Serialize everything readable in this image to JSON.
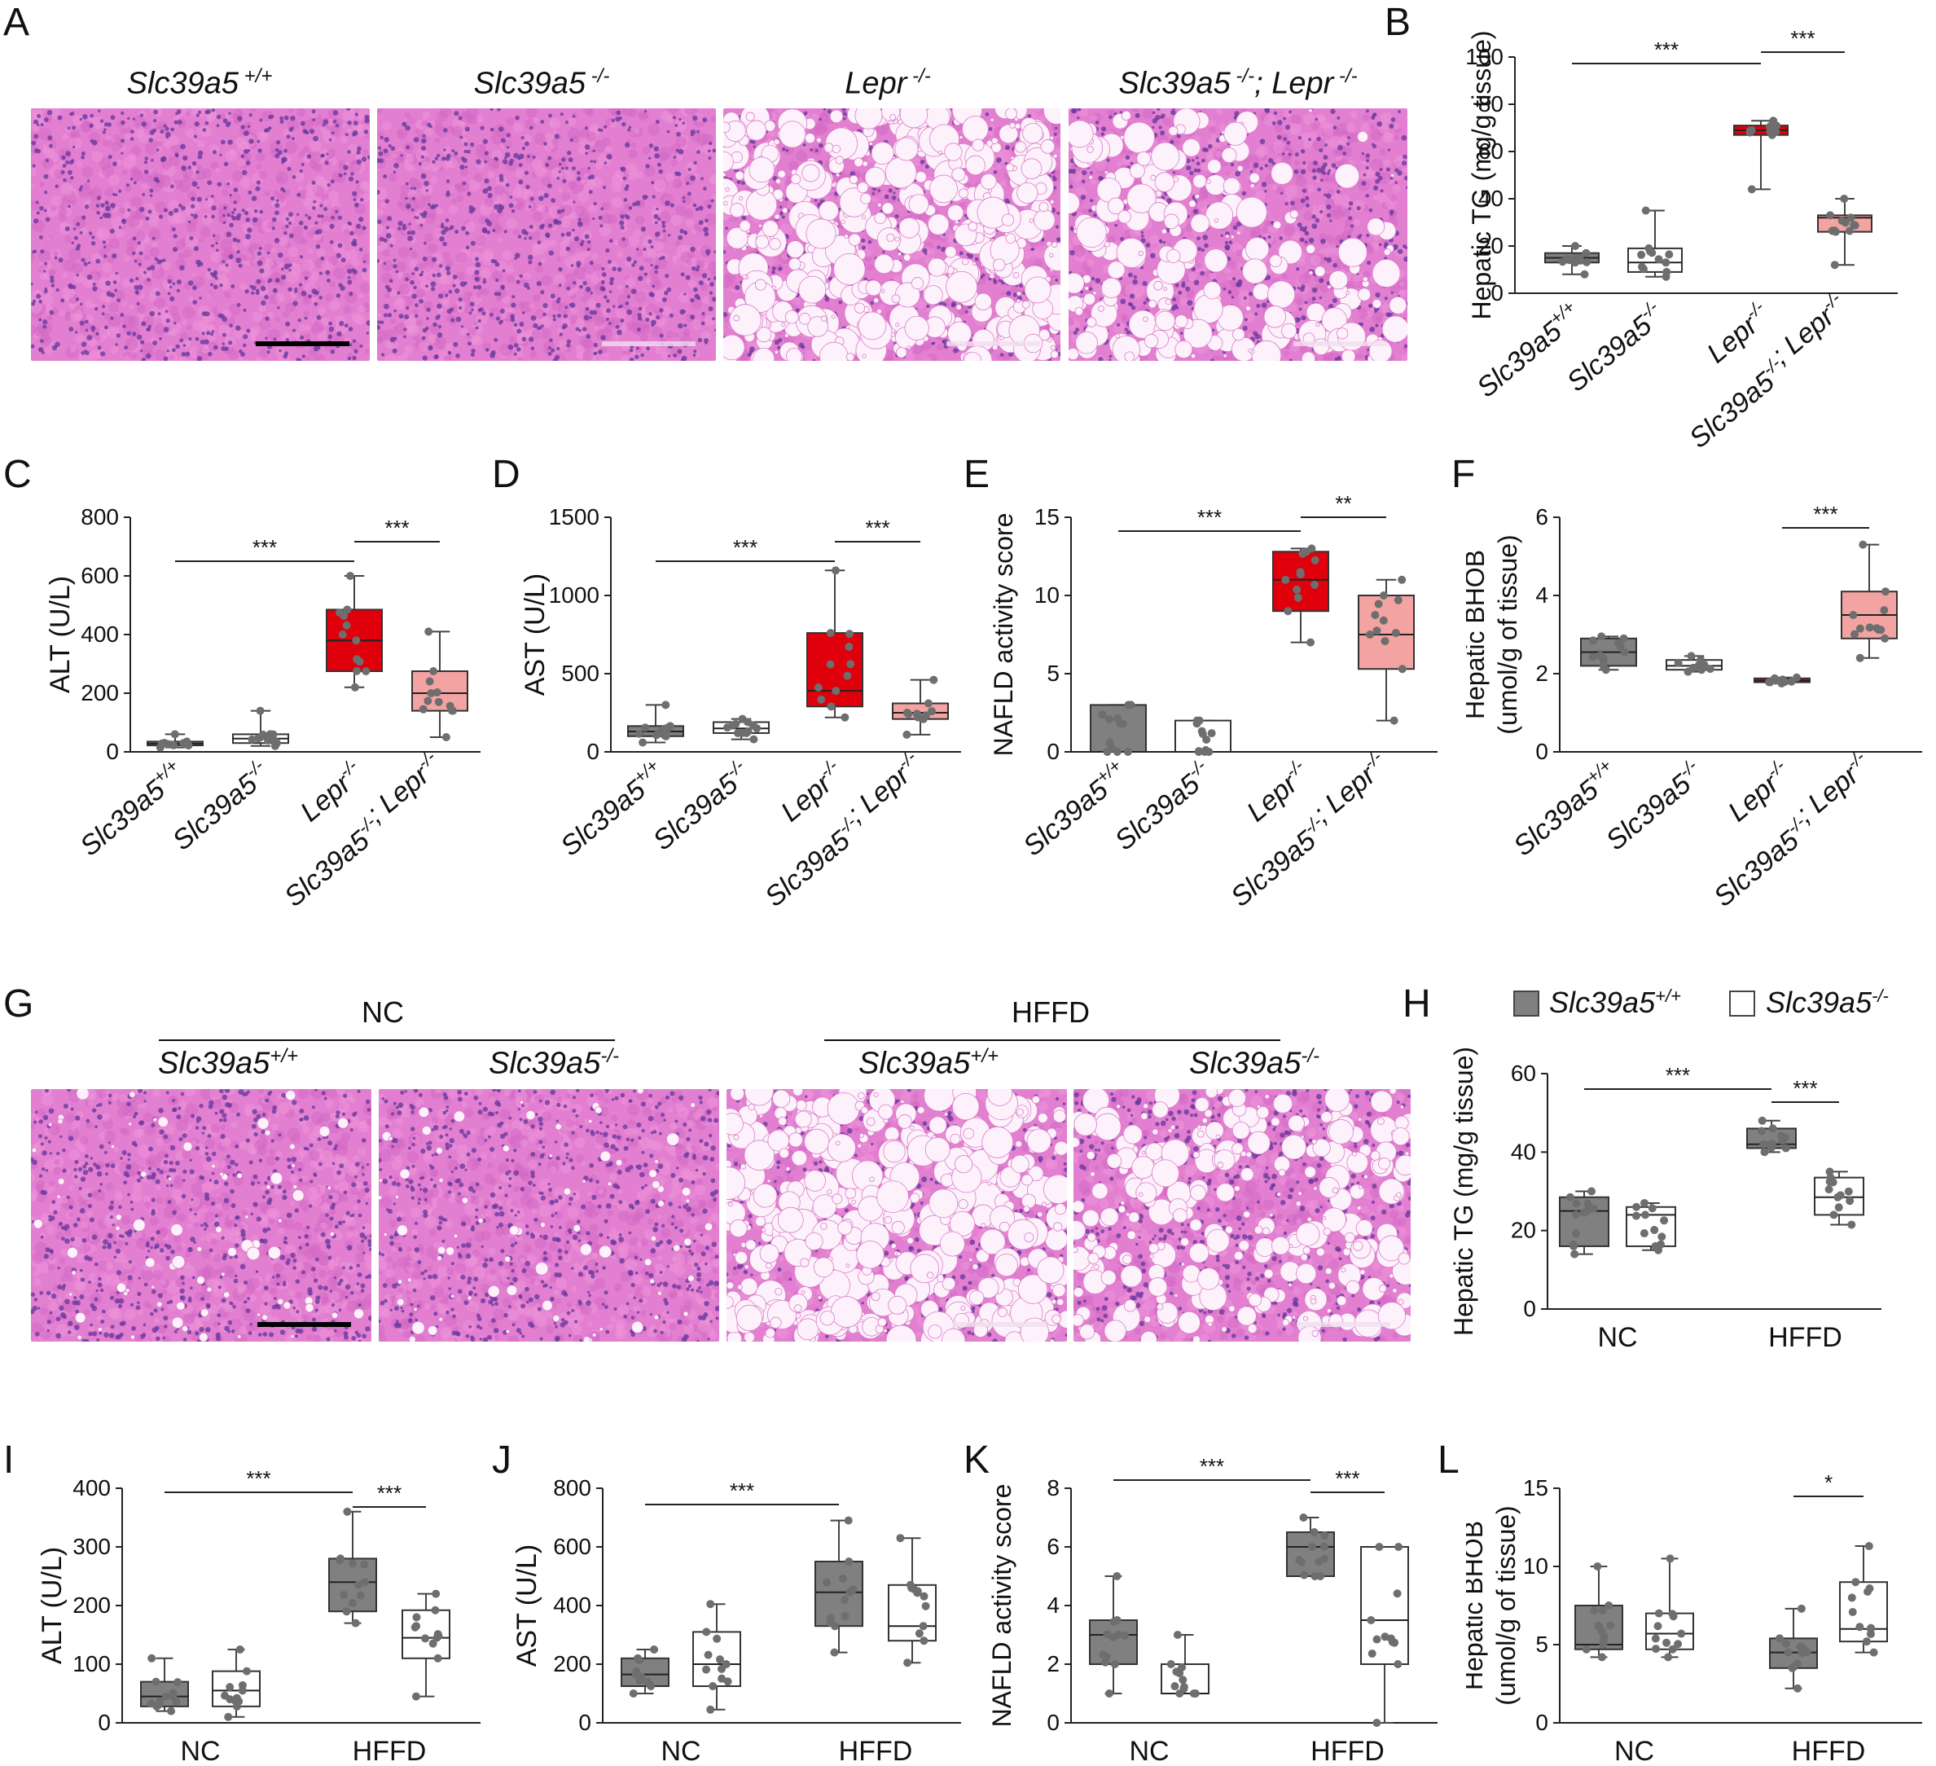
{
  "panel_letters": [
    "A",
    "B",
    "C",
    "D",
    "E",
    "F",
    "G",
    "H",
    "I",
    "J",
    "K",
    "L"
  ],
  "panelA": {
    "images": [
      {
        "title_main": "Slc39a5",
        "title_sup": " +/+",
        "tissue": "normal"
      },
      {
        "title_main": "Slc39a5",
        "title_sup": " -/-",
        "tissue": "normal"
      },
      {
        "title_main": "Lepr",
        "title_sup": " -/-",
        "tissue": "steatosis-heavy"
      },
      {
        "title_main": "Slc39a5",
        "title_sup": " -/-",
        "title_main2": "; Lepr",
        "title_sup2": " -/-",
        "tissue": "steatosis-patchy"
      }
    ]
  },
  "panelG": {
    "group_NC": "NC",
    "group_HFFD": "HFFD",
    "images": [
      {
        "title_main": "Slc39a5",
        "title_sup": "+/+",
        "tissue": "mild"
      },
      {
        "title_main": "Slc39a5",
        "title_sup": "-/-",
        "tissue": "mild"
      },
      {
        "title_main": "Slc39a5",
        "title_sup": "+/+",
        "tissue": "steatosis-heavy"
      },
      {
        "title_main": "Slc39a5",
        "title_sup": "-/-",
        "tissue": "steatosis-medium"
      }
    ]
  },
  "legendH": {
    "items": [
      {
        "label_main": "Slc39a5",
        "label_sup": "+/+",
        "color": "#808080"
      },
      {
        "label_main": "Slc39a5",
        "label_sup": "-/-",
        "color": "#ffffff"
      }
    ]
  },
  "colors": {
    "wt": "#808080",
    "ko": "#ffffff",
    "lepr": "#e0000b",
    "dko": "#f4a3a3",
    "dot": "#6e6e6e"
  },
  "chart_data": [
    {
      "id": "B",
      "type": "box",
      "ylabel": "Hepatic TG (mg/g tissue)",
      "ylim": [
        0,
        100
      ],
      "yticks": [
        0,
        20,
        40,
        60,
        80,
        100
      ],
      "categories": [
        "Slc39a5+/+",
        "Slc39a5-/-",
        "Lepr-/-",
        "Slc39a5-/-; Lepr-/-"
      ],
      "boxes": [
        {
          "min": 8,
          "q1": 13,
          "median": 15,
          "q3": 17,
          "max": 20
        },
        {
          "min": 7,
          "q1": 9,
          "median": 13,
          "q3": 19,
          "max": 35
        },
        {
          "min": 44,
          "q1": 67,
          "median": 69,
          "q3": 71,
          "max": 73
        },
        {
          "min": 12,
          "q1": 26,
          "median": 32,
          "q3": 33,
          "max": 40
        }
      ],
      "sig": [
        {
          "from": 0,
          "to": 2,
          "text": "***"
        },
        {
          "from": 2,
          "to": 3,
          "text": "***"
        }
      ]
    },
    {
      "id": "C",
      "type": "box",
      "ylabel": "ALT (U/L)",
      "ylim": [
        0,
        800
      ],
      "yticks": [
        0,
        200,
        400,
        600,
        800
      ],
      "categories": [
        "Slc39a5+/+",
        "Slc39a5-/-",
        "Lepr-/-",
        "Slc39a5-/-; Lepr-/-"
      ],
      "boxes": [
        {
          "min": 15,
          "q1": 22,
          "median": 28,
          "q3": 35,
          "max": 60
        },
        {
          "min": 20,
          "q1": 30,
          "median": 45,
          "q3": 60,
          "max": 140
        },
        {
          "min": 220,
          "q1": 275,
          "median": 380,
          "q3": 485,
          "max": 600
        },
        {
          "min": 50,
          "q1": 140,
          "median": 200,
          "q3": 275,
          "max": 410
        }
      ],
      "sig": [
        {
          "from": 0,
          "to": 2,
          "text": "***"
        },
        {
          "from": 2,
          "to": 3,
          "text": "***"
        }
      ]
    },
    {
      "id": "D",
      "type": "box",
      "ylabel": "AST (U/L)",
      "ylim": [
        0,
        1500
      ],
      "yticks": [
        0,
        500,
        1000,
        1500
      ],
      "categories": [
        "Slc39a5+/+",
        "Slc39a5-/-",
        "Lepr-/-",
        "Slc39a5-/-; Lepr-/-"
      ],
      "boxes": [
        {
          "min": 60,
          "q1": 100,
          "median": 130,
          "q3": 165,
          "max": 300
        },
        {
          "min": 80,
          "q1": 120,
          "median": 150,
          "q3": 190,
          "max": 210
        },
        {
          "min": 220,
          "q1": 290,
          "median": 390,
          "q3": 760,
          "max": 1160
        },
        {
          "min": 110,
          "q1": 210,
          "median": 250,
          "q3": 310,
          "max": 460
        }
      ],
      "sig": [
        {
          "from": 0,
          "to": 2,
          "text": "***"
        },
        {
          "from": 2,
          "to": 3,
          "text": "***"
        }
      ]
    },
    {
      "id": "E",
      "type": "box",
      "ylabel": "NAFLD activity score",
      "ylim": [
        0,
        15
      ],
      "yticks": [
        0,
        5,
        10,
        15
      ],
      "categories": [
        "Slc39a5+/+",
        "Slc39a5-/-",
        "Lepr-/-",
        "Slc39a5-/-; Lepr-/-"
      ],
      "boxes": [
        {
          "min": 0,
          "q1": 0,
          "median": 0,
          "q3": 3,
          "max": 3
        },
        {
          "min": 0,
          "q1": 0,
          "median": 0,
          "q3": 2,
          "max": 2
        },
        {
          "min": 7,
          "q1": 9,
          "median": 11,
          "q3": 12.8,
          "max": 13
        },
        {
          "min": 2,
          "q1": 5.3,
          "median": 7.5,
          "q3": 10,
          "max": 11
        }
      ],
      "sig": [
        {
          "from": 0,
          "to": 2,
          "text": "***"
        },
        {
          "from": 2,
          "to": 3,
          "text": "**"
        }
      ]
    },
    {
      "id": "F",
      "type": "box",
      "ylabel": "Hepatic BHOB (umol/g of tissue)",
      "ylim": [
        0,
        6
      ],
      "yticks": [
        0,
        2,
        4,
        6
      ],
      "categories": [
        "Slc39a5+/+",
        "Slc39a5-/-",
        "Lepr-/-",
        "Slc39a5-/-; Lepr-/-"
      ],
      "boxes": [
        {
          "min": 2.1,
          "q1": 2.2,
          "median": 2.55,
          "q3": 2.9,
          "max": 2.95
        },
        {
          "min": 2.05,
          "q1": 2.1,
          "median": 2.2,
          "q3": 2.35,
          "max": 2.45
        },
        {
          "min": 1.75,
          "q1": 1.78,
          "median": 1.82,
          "q3": 1.88,
          "max": 1.9
        },
        {
          "min": 2.4,
          "q1": 2.9,
          "median": 3.5,
          "q3": 4.1,
          "max": 5.3
        }
      ],
      "sig": [
        {
          "from": 2,
          "to": 3,
          "text": "***"
        }
      ]
    },
    {
      "id": "H",
      "type": "box",
      "ylabel": "Hepatic TG (mg/g tissue)",
      "ylim": [
        0,
        60
      ],
      "yticks": [
        0,
        20,
        40,
        60
      ],
      "categories": [
        "NC",
        "HFFD"
      ],
      "boxes": [
        {
          "min": 14,
          "q1": 16,
          "median": 25,
          "q3": 28.5,
          "max": 30
        },
        {
          "min": 15,
          "q1": 16,
          "median": 24,
          "q3": 26,
          "max": 27
        },
        {
          "min": 40,
          "q1": 41,
          "median": 42,
          "q3": 46,
          "max": 48
        },
        {
          "min": 21.5,
          "q1": 24,
          "median": 28.5,
          "q3": 33.5,
          "max": 35
        }
      ],
      "sig": [
        {
          "from": 0,
          "to": 2,
          "text": "***"
        },
        {
          "from": 2,
          "to": 3,
          "text": "***"
        }
      ]
    },
    {
      "id": "I",
      "type": "box",
      "ylabel": "ALT (U/L)",
      "ylim": [
        0,
        400
      ],
      "yticks": [
        0,
        100,
        200,
        300,
        400
      ],
      "categories": [
        "NC",
        "HFFD"
      ],
      "boxes": [
        {
          "min": 20,
          "q1": 28,
          "median": 45,
          "q3": 70,
          "max": 110
        },
        {
          "min": 10,
          "q1": 28,
          "median": 55,
          "q3": 88,
          "max": 125
        },
        {
          "min": 170,
          "q1": 190,
          "median": 240,
          "q3": 280,
          "max": 360
        },
        {
          "min": 45,
          "q1": 110,
          "median": 145,
          "q3": 192,
          "max": 220
        }
      ],
      "sig": [
        {
          "from": 0,
          "to": 2,
          "text": "***"
        },
        {
          "from": 2,
          "to": 3,
          "text": "***"
        }
      ]
    },
    {
      "id": "J",
      "type": "box",
      "ylabel": "AST (U/L)",
      "ylim": [
        0,
        800
      ],
      "yticks": [
        0,
        200,
        400,
        600,
        800
      ],
      "categories": [
        "NC",
        "HFFD"
      ],
      "boxes": [
        {
          "min": 100,
          "q1": 125,
          "median": 165,
          "q3": 220,
          "max": 250
        },
        {
          "min": 45,
          "q1": 125,
          "median": 200,
          "q3": 310,
          "max": 405
        },
        {
          "min": 240,
          "q1": 330,
          "median": 445,
          "q3": 550,
          "max": 690
        },
        {
          "min": 205,
          "q1": 280,
          "median": 330,
          "q3": 470,
          "max": 630
        }
      ],
      "sig": [
        {
          "from": 0,
          "to": 2,
          "text": "***"
        }
      ]
    },
    {
      "id": "K",
      "type": "box",
      "ylabel": "NAFLD activity score",
      "ylim": [
        0,
        8
      ],
      "yticks": [
        0,
        2,
        4,
        6,
        8
      ],
      "categories": [
        "NC",
        "HFFD"
      ],
      "boxes": [
        {
          "min": 1,
          "q1": 2,
          "median": 3,
          "q3": 3.5,
          "max": 5
        },
        {
          "min": 1,
          "q1": 1,
          "median": 1,
          "q3": 2,
          "max": 3
        },
        {
          "min": 5,
          "q1": 5,
          "median": 6,
          "q3": 6.5,
          "max": 7
        },
        {
          "min": 0,
          "q1": 2,
          "median": 3.5,
          "q3": 6,
          "max": 6
        }
      ],
      "sig": [
        {
          "from": 0,
          "to": 2,
          "text": "***"
        },
        {
          "from": 2,
          "to": 3,
          "text": "***"
        }
      ]
    },
    {
      "id": "L",
      "type": "box",
      "ylabel": "Hepatic BHOB (umol/g of tissue)",
      "ylim": [
        0,
        15
      ],
      "yticks": [
        0,
        5,
        10,
        15
      ],
      "categories": [
        "NC",
        "HFFD"
      ],
      "boxes": [
        {
          "min": 4.2,
          "q1": 4.7,
          "median": 5,
          "q3": 7.5,
          "max": 10
        },
        {
          "min": 4.2,
          "q1": 4.7,
          "median": 5.7,
          "q3": 7,
          "max": 10.5
        },
        {
          "min": 2.2,
          "q1": 3.5,
          "median": 4.5,
          "q3": 5.4,
          "max": 7.3
        },
        {
          "min": 4.5,
          "q1": 5.2,
          "median": 6,
          "q3": 9,
          "max": 11.3
        }
      ],
      "sig": [
        {
          "from": 2,
          "to": 3,
          "text": "*"
        }
      ]
    }
  ]
}
